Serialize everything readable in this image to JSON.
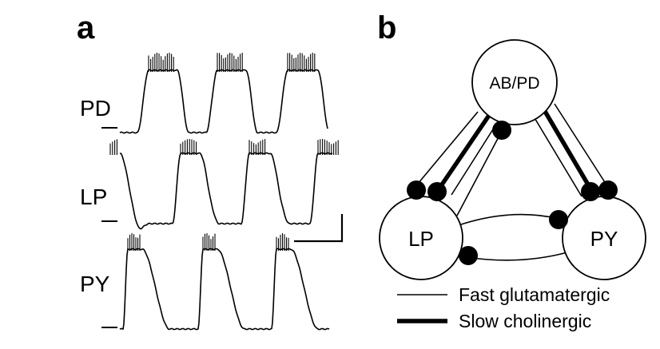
{
  "panel_a": {
    "letter": "a",
    "traces": [
      {
        "label": "PD"
      },
      {
        "label": "LP"
      },
      {
        "label": "PY"
      }
    ]
  },
  "panel_b": {
    "letter": "b",
    "nodes": {
      "abpd": "AB/PD",
      "lp": "LP",
      "py": "PY"
    },
    "legend": {
      "fast": "Fast glutamatergic",
      "slow": "Slow cholinergic"
    }
  }
}
